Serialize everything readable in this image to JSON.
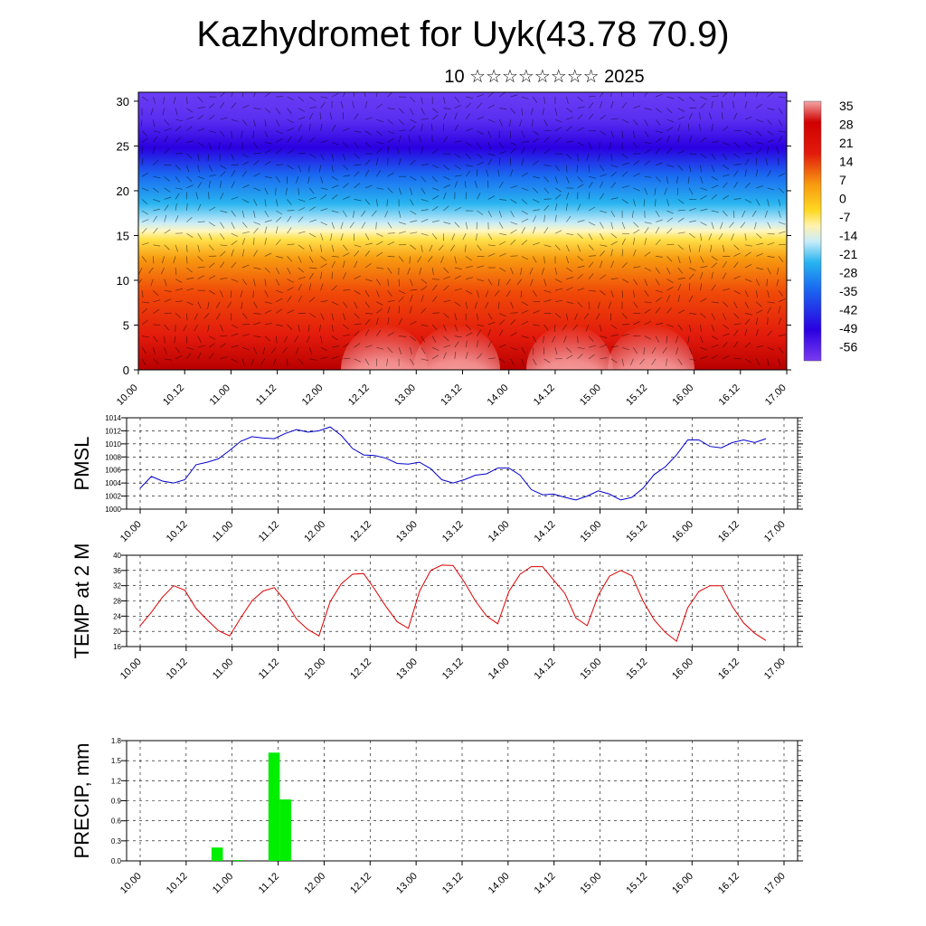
{
  "title": "Kazhydromet for Uyk(43.78 70.9)",
  "subtitle": "10 ☆☆☆☆☆☆☆☆ 2025",
  "time_ticks": [
    "10.00",
    "10.12",
    "11.00",
    "11.12",
    "12.00",
    "12.12",
    "13.00",
    "13.12",
    "14.00",
    "14.12",
    "15.00",
    "15.12",
    "16.00",
    "16.12",
    "17.00"
  ],
  "chart_data": [
    {
      "type": "heatmap",
      "title": "",
      "ylabel": "",
      "x_range": [
        "10.00",
        "17.00"
      ],
      "y_range": [
        0,
        31
      ],
      "y_ticks": [
        "0",
        "5",
        "10",
        "15",
        "20",
        "25",
        "30"
      ],
      "colorbar_labels": [
        "35",
        "28",
        "21",
        "14",
        "7",
        "0",
        "-7",
        "-14",
        "-21",
        "-28",
        "-35",
        "-42",
        "-49",
        "-56"
      ],
      "colorbar_range": [
        -63,
        42
      ],
      "colors": {
        "warm": "#e21a0c",
        "hot": "#f4a6a6",
        "mid": "#ffe14a",
        "cool": "#28b4f0",
        "cold": "#2a00e0"
      },
      "overlay": "wind-vectors"
    },
    {
      "type": "line",
      "ylabel": "PMSL",
      "ylim": [
        1000,
        1014
      ],
      "y_ticks": [
        "1000",
        "1002",
        "1004",
        "1006",
        "1008",
        "1010",
        "1012",
        "1014"
      ],
      "color": "#0000cc",
      "values": [
        1003.2,
        1005.0,
        1004.3,
        1004.0,
        1004.5,
        1006.8,
        1007.2,
        1007.7,
        1009.0,
        1010.4,
        1011.1,
        1010.9,
        1010.8,
        1011.6,
        1012.2,
        1011.8,
        1012.0,
        1012.6,
        1011.3,
        1009.3,
        1008.3,
        1008.2,
        1007.8,
        1007.0,
        1006.9,
        1007.2,
        1006.2,
        1004.5,
        1004.0,
        1004.5,
        1005.2,
        1005.4,
        1006.3,
        1006.3,
        1005.2,
        1003.0,
        1002.2,
        1002.3,
        1001.8,
        1001.4,
        1002.0,
        1002.8,
        1002.3,
        1001.4,
        1001.8,
        1003.2,
        1005.3,
        1006.5,
        1008.3,
        1010.6,
        1010.6,
        1009.6,
        1009.4,
        1010.2,
        1010.6,
        1010.2,
        1010.8
      ]
    },
    {
      "type": "line",
      "ylabel": "TEMP at 2 M",
      "ylim": [
        16,
        40
      ],
      "y_ticks": [
        "16",
        "20",
        "24",
        "28",
        "32",
        "36",
        "40"
      ],
      "color": "#dd0000",
      "values": [
        21.5,
        25.0,
        29.0,
        32.0,
        30.8,
        26.0,
        23.0,
        20.2,
        18.8,
        23.5,
        28.0,
        30.6,
        31.5,
        28.0,
        23.2,
        20.5,
        18.8,
        27.8,
        32.5,
        35.0,
        35.2,
        31.0,
        26.5,
        22.5,
        20.8,
        30.5,
        36.0,
        37.4,
        37.3,
        33.0,
        28.0,
        24.0,
        22.0,
        30.5,
        35.0,
        37.0,
        37.0,
        33.5,
        30.0,
        23.5,
        21.5,
        29.5,
        34.5,
        36.0,
        34.6,
        28.0,
        23.0,
        19.7,
        17.4,
        26.2,
        30.5,
        32.0,
        32.0,
        26.5,
        22.2,
        19.5,
        17.6
      ]
    },
    {
      "type": "bar",
      "ylabel": "PRECIP, mm",
      "ylim": [
        0,
        1.8
      ],
      "y_ticks": [
        "0.0",
        "0.3",
        "0.6",
        "0.9",
        "1.2",
        "1.5",
        "1.8"
      ],
      "color": "#00ee00",
      "values": [
        0,
        0,
        0,
        0,
        0,
        0.2,
        0,
        0,
        0,
        0,
        1.62,
        0.92,
        0,
        0,
        0,
        0,
        0,
        0,
        0,
        0,
        0,
        0,
        0,
        0,
        0,
        0,
        0,
        0,
        0,
        0,
        0,
        0,
        0,
        0,
        0,
        0,
        0,
        0,
        0,
        0,
        0,
        0,
        0,
        0,
        0,
        0,
        0,
        0,
        0,
        0,
        0,
        0,
        0,
        0,
        0,
        0
      ]
    }
  ]
}
